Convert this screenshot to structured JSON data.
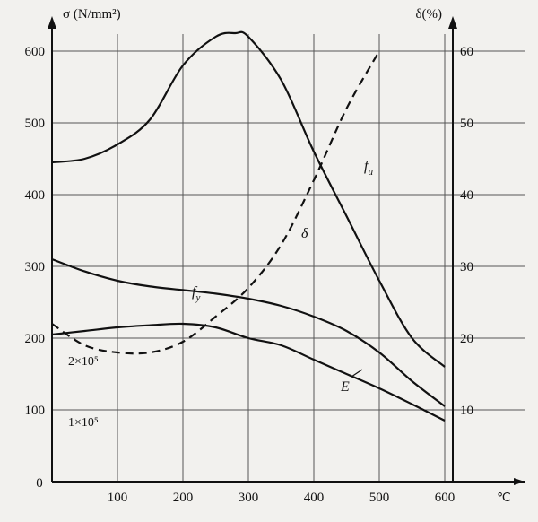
{
  "chart_data": {
    "type": "line",
    "left_axis_label": "σ (N/mm²)",
    "right_axis_label": "δ(%)",
    "x_unit_label": "℃",
    "origin_label": "0",
    "x_ticks": [
      100,
      200,
      300,
      400,
      500,
      600
    ],
    "x_range": [
      0,
      650
    ],
    "left_ticks": [
      100,
      200,
      300,
      400,
      500,
      600
    ],
    "left_range": [
      0,
      650
    ],
    "right_ticks": [
      10,
      20,
      30,
      40,
      50,
      60
    ],
    "left_extra_labels": [
      {
        "text": "2×10⁵",
        "y": 170
      },
      {
        "text": "1×10⁵",
        "y": 85
      }
    ],
    "grid": true,
    "series": [
      {
        "name": "fu",
        "axis": "left",
        "style": "solid",
        "x": [
          0,
          50,
          100,
          150,
          200,
          250,
          280,
          300,
          350,
          400,
          450,
          500,
          550,
          600
        ],
        "y": [
          445,
          450,
          470,
          505,
          580,
          620,
          625,
          620,
          560,
          460,
          370,
          280,
          200,
          160
        ]
      },
      {
        "name": "fy",
        "axis": "left",
        "style": "solid",
        "x": [
          0,
          50,
          100,
          150,
          200,
          250,
          300,
          350,
          400,
          450,
          500,
          550,
          600
        ],
        "y": [
          310,
          293,
          280,
          272,
          267,
          262,
          255,
          245,
          230,
          210,
          180,
          140,
          105
        ]
      },
      {
        "name": "E",
        "axis": "left",
        "style": "solid",
        "x": [
          0,
          50,
          100,
          150,
          200,
          250,
          300,
          350,
          400,
          450,
          500,
          550,
          600
        ],
        "y": [
          205,
          210,
          215,
          218,
          220,
          215,
          200,
          190,
          170,
          150,
          130,
          108,
          85
        ]
      },
      {
        "name": "δ",
        "axis": "right",
        "style": "dashed",
        "x": [
          0,
          50,
          100,
          150,
          200,
          250,
          300,
          350,
          400,
          450,
          500
        ],
        "y": [
          22,
          19,
          18,
          18,
          19.5,
          23,
          27,
          33,
          42,
          52,
          60
        ]
      }
    ]
  }
}
